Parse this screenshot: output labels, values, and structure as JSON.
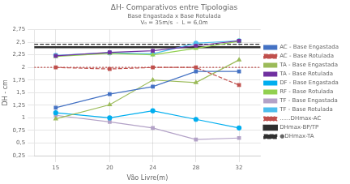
{
  "chart_data": {
    "type": "line",
    "title": "ΔH- Comparativos entre Tipologias",
    "subtitle": [
      "Base Engastada x Base Rotulada",
      "V₀ = 35m/s  -  L = 6,0m"
    ],
    "xlabel": "Vão Livre(m)",
    "ylabel": "DH - cm",
    "x": [
      15,
      20,
      24,
      28,
      32
    ],
    "series": [
      {
        "name": "AC - Base Engastada",
        "color": "#4472C4",
        "marker": "square",
        "line_style": "solid",
        "values": [
          1.2,
          1.47,
          1.62,
          1.92,
          1.92
        ]
      },
      {
        "name": "AC - Base Rotulada",
        "color": "#C0504D",
        "marker": "square",
        "line_style": "dashed",
        "values": [
          2.0,
          1.97,
          2.0,
          2.0,
          1.65
        ]
      },
      {
        "name": "TA - Base Engastada",
        "color": "#9BBB59",
        "marker": "triangle",
        "line_style": "solid",
        "values": [
          0.98,
          1.26,
          1.75,
          1.7,
          2.15
        ]
      },
      {
        "name": "TA - Base Rotulada",
        "color": "#7030A0",
        "marker": "square",
        "line_style": "solid",
        "values": [
          2.23,
          2.3,
          2.33,
          2.43,
          2.53
        ]
      },
      {
        "name": "DF - Base Engastada",
        "color": "#00AEEF",
        "marker": "circle",
        "line_style": "solid",
        "values": [
          1.1,
          1.0,
          1.14,
          0.97,
          0.8
        ]
      },
      {
        "name": "RF - Base Rotulada",
        "color": "#92D050",
        "marker": "triangle",
        "line_style": "solid",
        "values": [
          2.22,
          2.28,
          2.25,
          2.38,
          2.52
        ]
      },
      {
        "name": "TF - Base Engastada",
        "color": "#B3A2C7",
        "marker": "square",
        "line_style": "solid",
        "values": [
          1.05,
          0.92,
          0.8,
          0.57,
          0.6
        ]
      },
      {
        "name": "TF - Base Rotulada",
        "color": "#4DBEEE",
        "marker": "circle",
        "line_style": "solid",
        "values": [
          2.24,
          2.29,
          2.27,
          2.48,
          2.53
        ]
      },
      {
        "name": "......DHmax-AC",
        "type": "hline",
        "color": "#C0504D",
        "line_style": "dotted",
        "value": 2.0
      },
      {
        "name": "DHmax-BP/TP",
        "type": "hline",
        "color": "#2F2F2F",
        "line_style": "solid",
        "value": 2.4
      },
      {
        "name": "●DHmax-TA",
        "type": "hline",
        "color": "#2F2F2F",
        "line_style": "dashed",
        "value": 2.46
      }
    ],
    "xlim": [
      13,
      34
    ],
    "xticks": [
      15,
      20,
      24,
      28,
      32
    ],
    "ylim": [
      0.25,
      2.75
    ],
    "yticks": [
      {
        "value": 0.25,
        "label": "0,25"
      },
      {
        "value": 0.5,
        "label": "0,5"
      },
      {
        "value": 0.75,
        "label": "0,75"
      },
      1,
      {
        "value": 1.25,
        "label": "1,25"
      },
      {
        "value": 1.5,
        "label": "1,5"
      },
      {
        "value": 1.75,
        "label": "1,75"
      },
      2,
      {
        "value": 2.25,
        "label": "2,25"
      },
      {
        "value": 2.5,
        "label": "2,5"
      },
      {
        "value": 2.75,
        "label": "2,75"
      }
    ],
    "grid": true,
    "legend": "right"
  }
}
